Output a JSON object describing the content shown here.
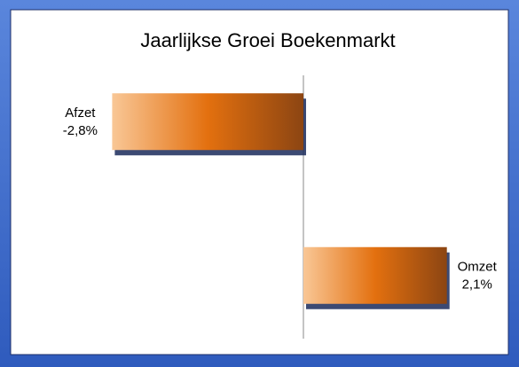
{
  "chart_data": {
    "type": "barh",
    "title": "Jaarlijkse Groei Boekenmarkt",
    "categories": [
      "Afzet",
      "Omzet"
    ],
    "values": [
      -2.8,
      2.1
    ],
    "value_labels": [
      "-2,8%",
      "2,1%"
    ],
    "colors": [
      "#f9c796",
      "#e3700f",
      "#8c4512"
    ],
    "xlim": [
      -3.5,
      2.5
    ]
  }
}
